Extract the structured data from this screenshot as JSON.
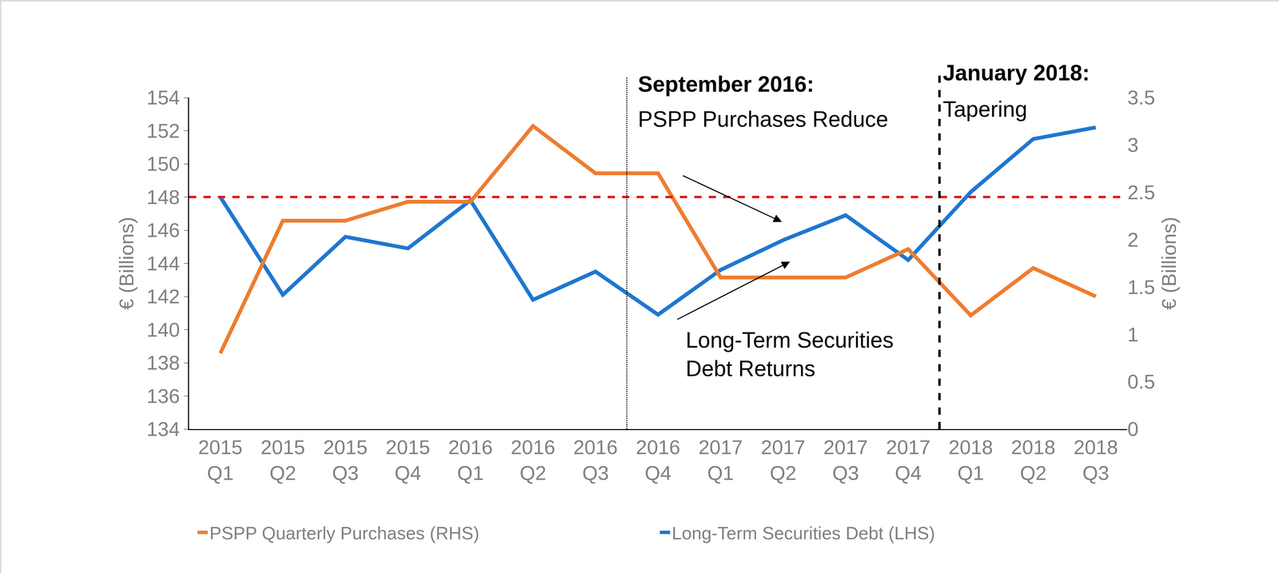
{
  "chart_data": {
    "type": "line",
    "categories": [
      "2015 Q1",
      "2015 Q2",
      "2015 Q3",
      "2015 Q4",
      "2016 Q1",
      "2016 Q2",
      "2016 Q3",
      "2016 Q4",
      "2017 Q1",
      "2017 Q2",
      "2017 Q3",
      "2017 Q4",
      "2018 Q1",
      "2018 Q2",
      "2018 Q3"
    ],
    "series": [
      {
        "name": "PSPP Quarterly Purchases (RHS)",
        "color": "#ED7D31",
        "axis": "y2",
        "values": [
          0.8,
          2.2,
          2.2,
          2.4,
          2.4,
          3.2,
          2.7,
          2.7,
          1.6,
          1.6,
          1.6,
          1.9,
          1.2,
          1.7,
          1.4
        ]
      },
      {
        "name": "Long-Term Securities Debt (LHS)",
        "color": "#1F77CF",
        "axis": "y",
        "values": [
          148.0,
          142.1,
          145.6,
          144.9,
          147.8,
          141.8,
          143.5,
          140.9,
          143.6,
          145.4,
          146.9,
          144.2,
          148.3,
          151.5,
          152.2
        ]
      }
    ],
    "y_label": "€ (Billions)",
    "y2_label": "€ (Billions)",
    "ylim": [
      134,
      154
    ],
    "yticks": [
      134,
      136,
      138,
      140,
      142,
      144,
      146,
      148,
      150,
      152,
      154
    ],
    "y2lim": [
      0,
      3.5
    ],
    "y2ticks": [
      0,
      0.5,
      1,
      1.5,
      2,
      2.5,
      3,
      3.5
    ],
    "xlim": [
      -0.5,
      14.5
    ],
    "grid": false,
    "legend": "bottom",
    "hlines": [
      {
        "value": 148,
        "axis": "y",
        "color": "#E31A1C",
        "line_style": "dash"
      }
    ],
    "vlines": [
      {
        "position": 6.5,
        "label": "September 2016:",
        "text": "PSPP Purchases Reduce",
        "color": "#000000",
        "line_style": "dot"
      },
      {
        "position": 11.5,
        "label": "January 2018:",
        "text": "Tapering",
        "color": "#000000",
        "line_style": "dash"
      }
    ],
    "annotations": [
      {
        "lines": [
          "Long-Term Securities",
          "Debt Returns"
        ],
        "x": 7.43,
        "y": 138.5
      }
    ],
    "arrows": [
      {
        "from": [
          7.39,
          149.3
        ],
        "to": [
          8.98,
          146.5
        ]
      },
      {
        "from": [
          7.3,
          140.6
        ],
        "to": [
          9.11,
          144.1
        ]
      }
    ]
  }
}
